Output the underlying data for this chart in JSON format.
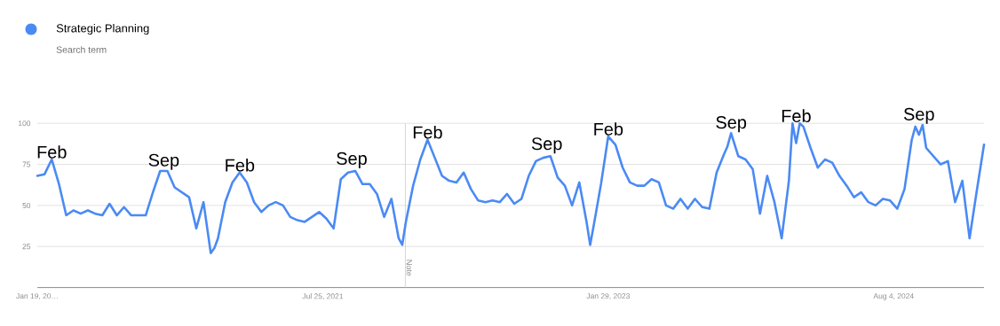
{
  "chart_data": {
    "type": "line",
    "subtitle": "Search term",
    "x": [
      "2020-01-19",
      "2020-02-02",
      "2020-02-16",
      "2020-03-01",
      "2020-03-15",
      "2020-03-29",
      "2020-04-12",
      "2020-04-26",
      "2020-05-10",
      "2020-05-24",
      "2020-06-07",
      "2020-06-21",
      "2020-07-05",
      "2020-07-19",
      "2020-08-02",
      "2020-08-16",
      "2020-08-30",
      "2020-09-13",
      "2020-09-27",
      "2020-10-11",
      "2020-10-25",
      "2020-11-08",
      "2020-11-22",
      "2020-12-06",
      "2020-12-20",
      "2020-12-27",
      "2021-01-03",
      "2021-01-17",
      "2021-01-31",
      "2021-02-14",
      "2021-02-28",
      "2021-03-14",
      "2021-03-28",
      "2021-04-11",
      "2021-04-25",
      "2021-05-09",
      "2021-05-23",
      "2021-06-06",
      "2021-06-20",
      "2021-07-04",
      "2021-07-18",
      "2021-08-01",
      "2021-08-15",
      "2021-08-29",
      "2021-09-12",
      "2021-09-26",
      "2021-10-10",
      "2021-10-24",
      "2021-11-07",
      "2021-11-21",
      "2021-12-05",
      "2021-12-19",
      "2021-12-26",
      "2022-01-02",
      "2022-01-16",
      "2022-01-30",
      "2022-02-13",
      "2022-02-27",
      "2022-03-13",
      "2022-03-27",
      "2022-04-10",
      "2022-04-24",
      "2022-05-08",
      "2022-05-22",
      "2022-06-05",
      "2022-06-19",
      "2022-07-03",
      "2022-07-17",
      "2022-07-31",
      "2022-08-14",
      "2022-08-28",
      "2022-09-11",
      "2022-09-25",
      "2022-10-09",
      "2022-10-23",
      "2022-11-06",
      "2022-11-20",
      "2022-12-04",
      "2022-12-18",
      "2022-12-25",
      "2023-01-01",
      "2023-01-15",
      "2023-01-29",
      "2023-02-12",
      "2023-02-26",
      "2023-03-12",
      "2023-03-26",
      "2023-04-09",
      "2023-04-23",
      "2023-05-07",
      "2023-05-21",
      "2023-06-04",
      "2023-06-18",
      "2023-07-02",
      "2023-07-16",
      "2023-07-30",
      "2023-08-13",
      "2023-08-27",
      "2023-09-10",
      "2023-09-17",
      "2023-09-24",
      "2023-10-08",
      "2023-10-22",
      "2023-11-05",
      "2023-11-19",
      "2023-12-03",
      "2023-12-17",
      "2023-12-31",
      "2024-01-14",
      "2024-01-21",
      "2024-01-28",
      "2024-02-04",
      "2024-02-11",
      "2024-02-25",
      "2024-03-10",
      "2024-03-24",
      "2024-04-07",
      "2024-04-21",
      "2024-05-05",
      "2024-05-19",
      "2024-06-02",
      "2024-06-16",
      "2024-06-30",
      "2024-07-14",
      "2024-07-28",
      "2024-08-11",
      "2024-08-25",
      "2024-09-08",
      "2024-09-15",
      "2024-09-22",
      "2024-09-29",
      "2024-10-06",
      "2024-10-20",
      "2024-11-03",
      "2024-11-17",
      "2024-12-01",
      "2024-12-15",
      "2024-12-29",
      "2025-01-12",
      "2025-01-26"
    ],
    "series": [
      {
        "name": "Strategic Planning",
        "color": "#4a8af4",
        "values": [
          68,
          69,
          78,
          63,
          44,
          47,
          45,
          47,
          45,
          44,
          51,
          44,
          49,
          44,
          44,
          44,
          58,
          71,
          71,
          61,
          58,
          55,
          36,
          52,
          21,
          24,
          30,
          52,
          64,
          70,
          64,
          52,
          46,
          50,
          52,
          50,
          43,
          41,
          40,
          43,
          46,
          42,
          36,
          66,
          70,
          71,
          63,
          63,
          57,
          43,
          54,
          30,
          26,
          40,
          62,
          78,
          90,
          79,
          68,
          65,
          64,
          70,
          60,
          53,
          52,
          53,
          52,
          57,
          51,
          54,
          68,
          77,
          79,
          80,
          67,
          62,
          50,
          64,
          40,
          26,
          38,
          63,
          92,
          87,
          73,
          64,
          62,
          62,
          66,
          64,
          50,
          48,
          54,
          48,
          54,
          49,
          48,
          70,
          81,
          86,
          94,
          80,
          78,
          72,
          45,
          68,
          52,
          30,
          65,
          100,
          88,
          100,
          98,
          85,
          73,
          78,
          76,
          68,
          62,
          55,
          58,
          52,
          50,
          54,
          53,
          48,
          60,
          90,
          98,
          93,
          99,
          85,
          80,
          75,
          77,
          52,
          65,
          30,
          59,
          87
        ]
      }
    ],
    "xlim": [
      "2020-01-19",
      "2025-01-26"
    ],
    "xticks": [
      {
        "value": "2020-01-19",
        "label": "Jan 19, 20…"
      },
      {
        "value": "2021-07-25",
        "label": "Jul 25, 2021"
      },
      {
        "value": "2023-01-29",
        "label": "Jan 29, 2023"
      },
      {
        "value": "2024-08-04",
        "label": "Aug 4, 2024"
      }
    ],
    "ylim": [
      0,
      100
    ],
    "yticks": [
      25,
      50,
      75,
      100
    ],
    "grid": "y",
    "legend": "top left",
    "marker": "none",
    "line_style": "solid",
    "ref_lines": [
      {
        "axis": "x",
        "value": "2022-01-01",
        "label": "Note",
        "color": "#cccccc"
      }
    ],
    "annotations": [
      {
        "text": "Feb",
        "x": "2020-02-16",
        "y": 78
      },
      {
        "text": "Sep",
        "x": "2020-09-20",
        "y": 71
      },
      {
        "text": "Feb",
        "x": "2021-02-14",
        "y": 70
      },
      {
        "text": "Sep",
        "x": "2021-09-19",
        "y": 72
      },
      {
        "text": "Feb",
        "x": "2022-02-13",
        "y": 90
      },
      {
        "text": "Sep",
        "x": "2022-10-02",
        "y": 81
      },
      {
        "text": "Feb",
        "x": "2023-01-29",
        "y": 92
      },
      {
        "text": "Sep",
        "x": "2023-09-24",
        "y": 94
      },
      {
        "text": "Feb",
        "x": "2024-01-28",
        "y": 100
      },
      {
        "text": "Sep",
        "x": "2024-09-22",
        "y": 99
      }
    ]
  }
}
